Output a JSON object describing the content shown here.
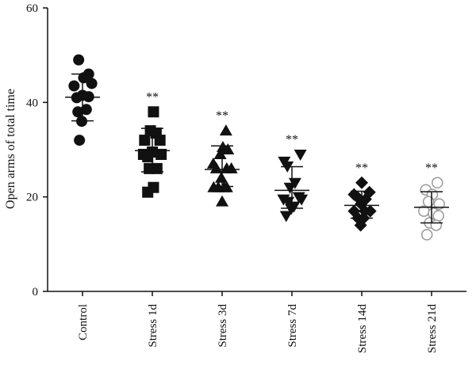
{
  "chart_data": {
    "type": "scatter",
    "ylabel": "Open arms of total time",
    "ylim": [
      0,
      60
    ],
    "yticks": [
      0,
      20,
      40,
      60
    ],
    "grid": false,
    "categories": [
      "Control",
      "Stress 1d",
      "Stress 3d",
      "Stress 7d",
      "Stress 14d",
      "Stress 21d"
    ],
    "markers": [
      "circle",
      "square",
      "triangle-up",
      "triangle-down",
      "diamond",
      "open-circle"
    ],
    "significance": [
      "",
      "**",
      "**",
      "**",
      "**",
      "**"
    ],
    "summary": [
      {
        "mean": 41.1,
        "sd_low": 36.1,
        "sd_high": 46.0
      },
      {
        "mean": 29.8,
        "sd_low": 25.3,
        "sd_high": 34.5
      },
      {
        "mean": 25.8,
        "sd_low": 22.2,
        "sd_high": 30.8
      },
      {
        "mean": 21.4,
        "sd_low": 17.6,
        "sd_high": 26.4
      },
      {
        "mean": 18.2,
        "sd_low": 15.5,
        "sd_high": 21.2
      },
      {
        "mean": 17.8,
        "sd_low": 14.5,
        "sd_high": 21.1
      }
    ],
    "points": [
      [
        {
          "x": -0.22,
          "y": 43.5
        },
        {
          "x": -0.1,
          "y": 49.0
        },
        {
          "x": 0.03,
          "y": 45.2
        },
        {
          "x": 0.16,
          "y": 46.0
        },
        {
          "x": 0.24,
          "y": 44.0
        },
        {
          "x": -0.15,
          "y": 41.0
        },
        {
          "x": 0.0,
          "y": 41.5
        },
        {
          "x": 0.16,
          "y": 41.2
        },
        {
          "x": -0.12,
          "y": 38.0
        },
        {
          "x": 0.1,
          "y": 38.5
        },
        {
          "x": -0.02,
          "y": 36.0
        },
        {
          "x": -0.08,
          "y": 32.0
        }
      ],
      [
        {
          "x": 0.03,
          "y": 38.0
        },
        {
          "x": -0.05,
          "y": 34.0
        },
        {
          "x": 0.1,
          "y": 33.5
        },
        {
          "x": -0.2,
          "y": 32.0
        },
        {
          "x": 0.2,
          "y": 32.0
        },
        {
          "x": -0.23,
          "y": 29.0
        },
        {
          "x": -0.12,
          "y": 28.5
        },
        {
          "x": 0.0,
          "y": 29.5
        },
        {
          "x": 0.23,
          "y": 29.0
        },
        {
          "x": -0.08,
          "y": 26.0
        },
        {
          "x": 0.12,
          "y": 26.0
        },
        {
          "x": 0.03,
          "y": 22.0
        },
        {
          "x": -0.12,
          "y": 21.0
        }
      ],
      [
        {
          "x": 0.1,
          "y": 34.0
        },
        {
          "x": 0.02,
          "y": 30.5
        },
        {
          "x": 0.15,
          "y": 30.0
        },
        {
          "x": -0.05,
          "y": 29.0
        },
        {
          "x": -0.23,
          "y": 27.0
        },
        {
          "x": -0.15,
          "y": 26.0
        },
        {
          "x": 0.12,
          "y": 26.0
        },
        {
          "x": 0.24,
          "y": 26.0
        },
        {
          "x": -0.02,
          "y": 24.0
        },
        {
          "x": -0.22,
          "y": 22.0
        },
        {
          "x": -0.1,
          "y": 22.0
        },
        {
          "x": 0.05,
          "y": 22.0
        },
        {
          "x": 0.12,
          "y": 22.0
        },
        {
          "x": 0.0,
          "y": 19.0
        }
      ],
      [
        {
          "x": 0.22,
          "y": 29.0
        },
        {
          "x": -0.2,
          "y": 27.5
        },
        {
          "x": -0.12,
          "y": 26.5
        },
        {
          "x": 0.08,
          "y": 23.0
        },
        {
          "x": -0.05,
          "y": 22.0
        },
        {
          "x": 0.18,
          "y": 20.0
        },
        {
          "x": -0.22,
          "y": 19.5
        },
        {
          "x": -0.1,
          "y": 19.0
        },
        {
          "x": 0.05,
          "y": 18.0
        },
        {
          "x": 0.25,
          "y": 19.5
        },
        {
          "x": -0.02,
          "y": 17.5
        },
        {
          "x": -0.15,
          "y": 16.0
        }
      ],
      [
        {
          "x": 0.0,
          "y": 23.0
        },
        {
          "x": 0.2,
          "y": 21.0
        },
        {
          "x": -0.2,
          "y": 20.5
        },
        {
          "x": -0.12,
          "y": 20.0
        },
        {
          "x": 0.1,
          "y": 19.5
        },
        {
          "x": -0.02,
          "y": 18.5
        },
        {
          "x": -0.2,
          "y": 17.0
        },
        {
          "x": 0.08,
          "y": 17.0
        },
        {
          "x": 0.22,
          "y": 17.0
        },
        {
          "x": -0.1,
          "y": 15.5
        },
        {
          "x": 0.05,
          "y": 15.5
        },
        {
          "x": -0.03,
          "y": 14.0
        }
      ],
      [
        {
          "x": -0.15,
          "y": 21.5
        },
        {
          "x": 0.15,
          "y": 23.0
        },
        {
          "x": 0.02,
          "y": 20.5
        },
        {
          "x": -0.08,
          "y": 19.0
        },
        {
          "x": 0.2,
          "y": 18.5
        },
        {
          "x": -0.2,
          "y": 17.0
        },
        {
          "x": 0.05,
          "y": 16.5
        },
        {
          "x": 0.18,
          "y": 16.0
        },
        {
          "x": -0.05,
          "y": 14.5
        },
        {
          "x": 0.12,
          "y": 14.0
        },
        {
          "x": -0.12,
          "y": 12.0
        }
      ]
    ]
  }
}
